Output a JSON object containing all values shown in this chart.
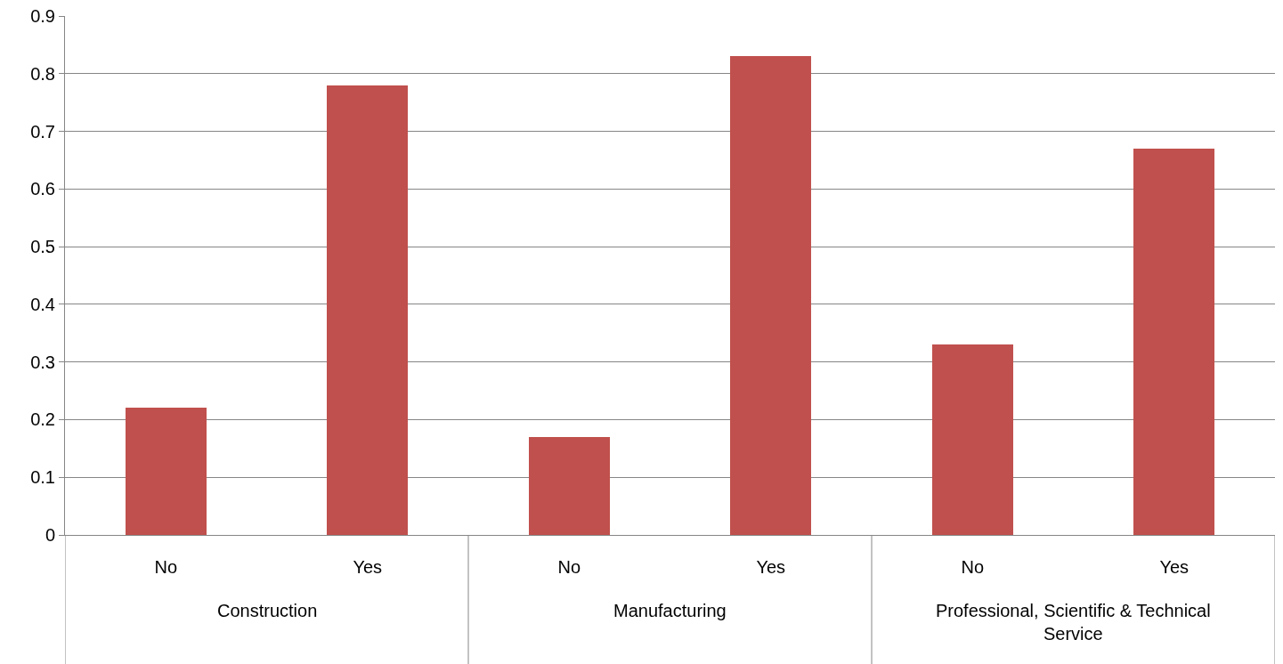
{
  "chart_data": {
    "type": "bar",
    "categories": [
      "No",
      "Yes",
      "No",
      "Yes",
      "No",
      "Yes"
    ],
    "values": [
      0.22,
      0.78,
      0.17,
      0.83,
      0.33,
      0.67
    ],
    "color": "#c0504d",
    "annotations": [
      "Construction",
      "Manufacturing",
      "Professional, Scientific & Technical Service"
    ],
    "ylim": [
      0,
      0.9
    ],
    "yticks": [
      0,
      0.1,
      0.2,
      0.3,
      0.4,
      0.5,
      0.6,
      0.7,
      0.8,
      0.9
    ],
    "grid": "y",
    "legend": false
  }
}
